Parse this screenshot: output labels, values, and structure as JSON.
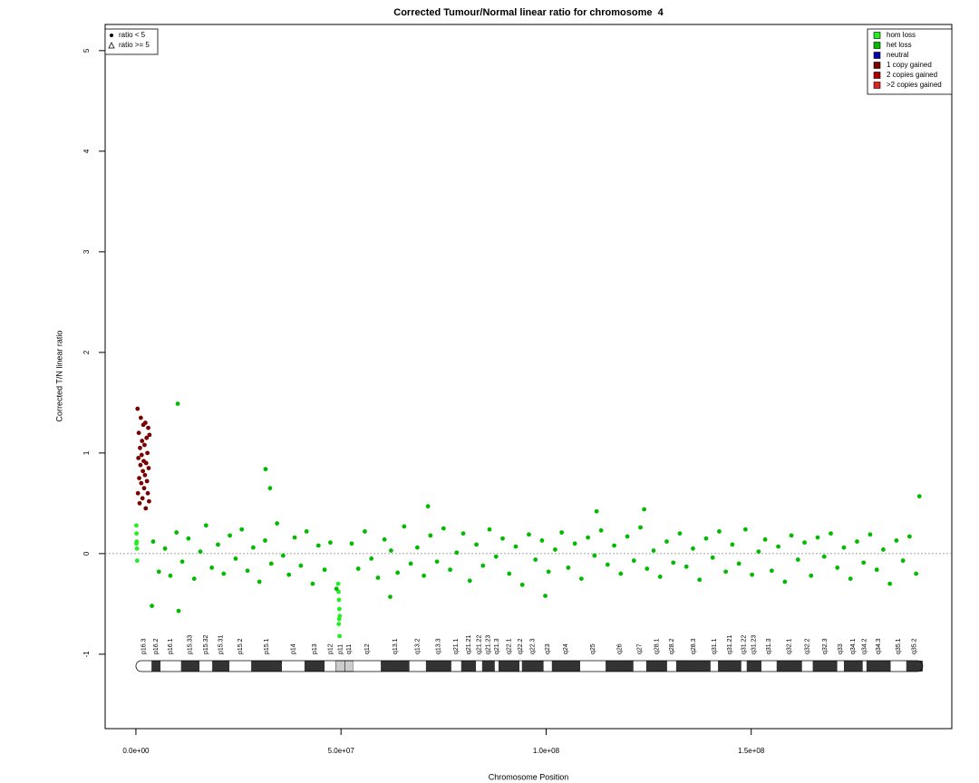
{
  "chart_data": {
    "type": "scatter",
    "title": "Corrected Tumour/Normal linear ratio for chromosome  4",
    "x_label": "Chromosome Position",
    "y_label": "Corrected T/N linear ratio",
    "xlim": [
      -7500000.0,
      198900000.0
    ],
    "ylim": [
      -1.74,
      5.26
    ],
    "xticks": [
      {
        "value": 0,
        "label": "0.0e+00"
      },
      {
        "value": 50000000.0,
        "label": "5.0e+07"
      },
      {
        "value": 100000000.0,
        "label": "1.0e+08"
      },
      {
        "value": 150000000.0,
        "label": "1.5e+08"
      }
    ],
    "yticks": [
      -1,
      0,
      1,
      2,
      3,
      4,
      5
    ],
    "hline": 0,
    "legend_position": "top-right",
    "shape_legend": [
      "ratio < 5",
      "ratio >= 5"
    ],
    "series": [
      {
        "name": "hom loss",
        "color": "#22ee22",
        "x": [
          100000.0,
          150000.0,
          200000.0,
          250000.0,
          300000.0,
          120000.0,
          49300000.0,
          49400000.0,
          49500000.0,
          49600000.0,
          49700000.0,
          49450000.0,
          49550000.0,
          49650000.0
        ],
        "values": [
          0.28,
          0.2,
          0.12,
          0.05,
          -0.07,
          0.1,
          -0.3,
          -0.38,
          -0.46,
          -0.55,
          -0.62,
          -0.7,
          -0.65,
          -0.82
        ]
      },
      {
        "name": "het loss",
        "color": "#00bb00",
        "x": [
          4200000.0,
          5600000.0,
          7100000.0,
          8400000.0,
          9900000.0,
          11300000.0,
          12800000.0,
          14200000.0,
          15700000.0,
          17100000.0,
          18500000.0,
          20000000.0,
          21400000.0,
          22900000.0,
          24300000.0,
          25800000.0,
          27200000.0,
          28600000.0,
          30100000.0,
          31500000.0,
          33000000.0,
          34400000.0,
          35900000.0,
          37300000.0,
          38700000.0,
          40200000.0,
          41600000.0,
          43100000.0,
          44500000.0,
          46000000.0,
          47400000.0,
          48900000.0,
          52600000.0,
          54200000.0,
          55800000.0,
          57400000.0,
          59000000.0,
          60600000.0,
          62200000.0,
          63800000.0,
          65400000.0,
          67000000.0,
          68600000.0,
          70200000.0,
          71800000.0,
          73400000.0,
          75000000.0,
          76600000.0,
          78200000.0,
          79800000.0,
          81400000.0,
          83000000.0,
          84600000.0,
          86200000.0,
          87800000.0,
          89400000.0,
          91000000.0,
          92600000.0,
          94200000.0,
          95800000.0,
          97400000.0,
          99000000.0,
          100600000.0,
          102200000.0,
          103800000.0,
          105400000.0,
          107000000.0,
          108600000.0,
          110200000.0,
          111800000.0,
          113400000.0,
          115000000.0,
          116600000.0,
          118200000.0,
          119800000.0,
          121400000.0,
          123000000.0,
          124600000.0,
          126200000.0,
          127800000.0,
          129400000.0,
          131000000.0,
          132600000.0,
          134200000.0,
          135800000.0,
          137400000.0,
          139000000.0,
          140600000.0,
          142200000.0,
          143800000.0,
          145400000.0,
          147000000.0,
          148600000.0,
          150200000.0,
          151800000.0,
          153400000.0,
          155000000.0,
          156600000.0,
          158200000.0,
          159800000.0,
          161400000.0,
          163000000.0,
          164600000.0,
          166200000.0,
          167800000.0,
          169400000.0,
          171000000.0,
          172600000.0,
          174200000.0,
          175800000.0,
          177400000.0,
          179000000.0,
          180600000.0,
          182200000.0,
          183800000.0,
          185400000.0,
          187000000.0,
          188600000.0,
          190200000.0,
          10200000.0,
          31600000.0,
          32700000.0,
          10400000.0,
          3900000.0,
          191000000.0,
          71200000.0,
          123900000.0,
          112300000.0,
          62000000.0,
          99800000.0
        ],
        "values": [
          0.12,
          -0.18,
          0.05,
          -0.22,
          0.21,
          -0.08,
          0.15,
          -0.25,
          0.02,
          0.28,
          -0.14,
          0.09,
          -0.2,
          0.18,
          -0.05,
          0.24,
          -0.17,
          0.06,
          -0.28,
          0.13,
          -0.1,
          0.3,
          -0.02,
          -0.21,
          0.16,
          -0.12,
          0.22,
          -0.3,
          0.08,
          -0.16,
          0.11,
          -0.35,
          0.1,
          -0.15,
          0.22,
          -0.05,
          -0.24,
          0.14,
          0.03,
          -0.19,
          0.27,
          -0.1,
          0.06,
          -0.22,
          0.18,
          -0.08,
          0.25,
          -0.16,
          0.01,
          0.2,
          -0.27,
          0.09,
          -0.12,
          0.24,
          -0.03,
          0.15,
          -0.2,
          0.07,
          -0.31,
          0.19,
          -0.06,
          0.13,
          -0.18,
          0.04,
          0.21,
          -0.14,
          0.1,
          -0.25,
          0.16,
          -0.02,
          0.23,
          -0.11,
          0.08,
          -0.2,
          0.17,
          -0.07,
          0.26,
          -0.15,
          0.03,
          -0.23,
          0.12,
          -0.09,
          0.2,
          -0.13,
          0.05,
          -0.26,
          0.15,
          -0.04,
          0.22,
          -0.18,
          0.09,
          -0.1,
          0.24,
          -0.21,
          0.02,
          0.14,
          -0.17,
          0.07,
          -0.28,
          0.18,
          -0.06,
          0.11,
          -0.22,
          0.16,
          -0.03,
          0.2,
          -0.14,
          0.06,
          -0.25,
          0.12,
          -0.09,
          0.19,
          -0.16,
          0.04,
          -0.3,
          0.13,
          -0.07,
          0.17,
          -0.2,
          1.49,
          0.84,
          0.65,
          -0.57,
          -0.52,
          0.57,
          0.47,
          0.44,
          0.42,
          -0.43,
          -0.42
        ]
      },
      {
        "name": "neutral",
        "color": "#0000aa",
        "x": [],
        "values": []
      },
      {
        "name": "1 copy gained",
        "color": "#7a0000",
        "x": [
          400000.0,
          500000.0,
          600000.0,
          700000.0,
          800000.0,
          900000.0,
          1000000.0,
          1100000.0,
          1200000.0,
          1300000.0,
          1400000.0,
          1500000.0,
          1600000.0,
          1700000.0,
          1800000.0,
          1900000.0,
          2000000.0,
          2100000.0,
          2200000.0,
          2300000.0,
          2400000.0,
          2500000.0,
          2600000.0,
          2700000.0,
          2800000.0,
          2900000.0,
          3000000.0,
          3100000.0,
          3200000.0,
          3300000.0
        ],
        "values": [
          1.44,
          0.6,
          0.95,
          1.2,
          0.75,
          0.5,
          1.05,
          0.88,
          1.35,
          0.7,
          0.98,
          1.12,
          0.55,
          0.82,
          1.28,
          0.92,
          0.65,
          1.08,
          0.78,
          1.3,
          0.45,
          0.9,
          1.15,
          0.72,
          1.0,
          0.6,
          1.25,
          0.85,
          0.52,
          1.18
        ]
      },
      {
        "name": "2 copies gained",
        "color": "#aa0000",
        "x": [],
        "values": []
      },
      {
        "name": ">2 copies gained",
        "color": "#dd2222",
        "x": [],
        "values": []
      }
    ],
    "bands": [
      {
        "name": "p16.3",
        "start": 0,
        "end": 3800000.0,
        "stain": "gneg"
      },
      {
        "name": "p16.2",
        "start": 3800000.0,
        "end": 6000000.0,
        "stain": "gpos"
      },
      {
        "name": "p16.1",
        "start": 6000000.0,
        "end": 11000000.0,
        "stain": "gneg"
      },
      {
        "name": "p15.33",
        "start": 11000000.0,
        "end": 15500000.0,
        "stain": "gpos"
      },
      {
        "name": "p15.32",
        "start": 15500000.0,
        "end": 18600000.0,
        "stain": "gneg"
      },
      {
        "name": "p15.31",
        "start": 18600000.0,
        "end": 22800000.0,
        "stain": "gpos"
      },
      {
        "name": "p15.2",
        "start": 22800000.0,
        "end": 28100000.0,
        "stain": "gneg"
      },
      {
        "name": "p15.1",
        "start": 28100000.0,
        "end": 35600000.0,
        "stain": "gpos"
      },
      {
        "name": "p14",
        "start": 35600000.0,
        "end": 41100000.0,
        "stain": "gneg"
      },
      {
        "name": "p13",
        "start": 41100000.0,
        "end": 46000000.0,
        "stain": "gpos"
      },
      {
        "name": "p12",
        "start": 46000000.0,
        "end": 48800000.0,
        "stain": "gneg"
      },
      {
        "name": "p11",
        "start": 48800000.0,
        "end": 51000000.0,
        "stain": "acen"
      },
      {
        "name": "q11",
        "start": 51000000.0,
        "end": 53000000.0,
        "stain": "acen"
      },
      {
        "name": "q12",
        "start": 53000000.0,
        "end": 59700000.0,
        "stain": "gneg"
      },
      {
        "name": "q13.1",
        "start": 59700000.0,
        "end": 66700000.0,
        "stain": "gpos"
      },
      {
        "name": "q13.2",
        "start": 66700000.0,
        "end": 70700000.0,
        "stain": "gneg"
      },
      {
        "name": "q13.3",
        "start": 70700000.0,
        "end": 76900000.0,
        "stain": "gpos"
      },
      {
        "name": "q21.1",
        "start": 76900000.0,
        "end": 79300000.0,
        "stain": "gneg"
      },
      {
        "name": "q21.21",
        "start": 79300000.0,
        "end": 82900000.0,
        "stain": "gpos"
      },
      {
        "name": "q21.22",
        "start": 82900000.0,
        "end": 84400000.0,
        "stain": "gneg"
      },
      {
        "name": "q21.23",
        "start": 84400000.0,
        "end": 87500000.0,
        "stain": "gpos"
      },
      {
        "name": "q21.3",
        "start": 87500000.0,
        "end": 88400000.0,
        "stain": "gneg"
      },
      {
        "name": "q22.1",
        "start": 88400000.0,
        "end": 93500000.0,
        "stain": "gpos"
      },
      {
        "name": "q22.2",
        "start": 93500000.0,
        "end": 94100000.0,
        "stain": "gneg"
      },
      {
        "name": "q22.3",
        "start": 94100000.0,
        "end": 99400000.0,
        "stain": "gpos"
      },
      {
        "name": "q23",
        "start": 99400000.0,
        "end": 101400000.0,
        "stain": "gneg"
      },
      {
        "name": "q24",
        "start": 101400000.0,
        "end": 108300000.0,
        "stain": "gpos"
      },
      {
        "name": "q25",
        "start": 108300000.0,
        "end": 114500000.0,
        "stain": "gneg"
      },
      {
        "name": "q26",
        "start": 114500000.0,
        "end": 121300000.0,
        "stain": "gpos"
      },
      {
        "name": "q27",
        "start": 121300000.0,
        "end": 124400000.0,
        "stain": "gneg"
      },
      {
        "name": "q28.1",
        "start": 124400000.0,
        "end": 129500000.0,
        "stain": "gpos"
      },
      {
        "name": "q28.2",
        "start": 129500000.0,
        "end": 131700000.0,
        "stain": "gneg"
      },
      {
        "name": "q28.3",
        "start": 131700000.0,
        "end": 140100000.0,
        "stain": "gpos"
      },
      {
        "name": "q31.1",
        "start": 140100000.0,
        "end": 141900000.0,
        "stain": "gneg"
      },
      {
        "name": "q31.21",
        "start": 141900000.0,
        "end": 147600000.0,
        "stain": "gpos"
      },
      {
        "name": "q31.22",
        "start": 147600000.0,
        "end": 148900000.0,
        "stain": "gneg"
      },
      {
        "name": "q31.23",
        "start": 148900000.0,
        "end": 152500000.0,
        "stain": "gpos"
      },
      {
        "name": "q31.3",
        "start": 152500000.0,
        "end": 156200000.0,
        "stain": "gneg"
      },
      {
        "name": "q32.1",
        "start": 156200000.0,
        "end": 162400000.0,
        "stain": "gpos"
      },
      {
        "name": "q32.2",
        "start": 162400000.0,
        "end": 165000000.0,
        "stain": "gneg"
      },
      {
        "name": "q32.3",
        "start": 165000000.0,
        "end": 171000000.0,
        "stain": "gpos"
      },
      {
        "name": "q33",
        "start": 171000000.0,
        "end": 172600000.0,
        "stain": "gneg"
      },
      {
        "name": "q34.1",
        "start": 172600000.0,
        "end": 177200000.0,
        "stain": "gpos"
      },
      {
        "name": "q34.2",
        "start": 177200000.0,
        "end": 178100000.0,
        "stain": "gneg"
      },
      {
        "name": "q34.3",
        "start": 178100000.0,
        "end": 184000000.0,
        "stain": "gpos"
      },
      {
        "name": "q35.1",
        "start": 184000000.0,
        "end": 187800000.0,
        "stain": "gneg"
      },
      {
        "name": "q35.2",
        "start": 187800000.0,
        "end": 191800000.0,
        "stain": "gpos"
      }
    ]
  }
}
